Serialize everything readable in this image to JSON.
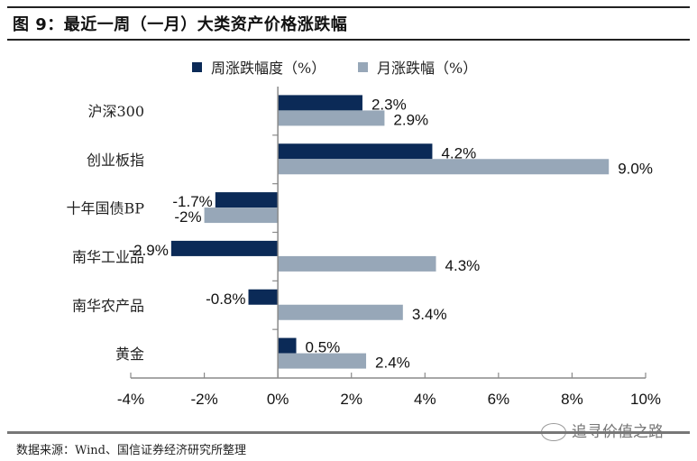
{
  "header": {
    "title": "图 9：最近一周（一月）大类资产价格涨跌幅"
  },
  "footer": {
    "source": "数据来源：Wind、国信证券经济研究所整理",
    "watermark": "追寻价值之路"
  },
  "colors": {
    "weekly": "#0b2a57",
    "monthly": "#97a7b8",
    "axis": "#8a8a8a"
  },
  "chart_data": {
    "type": "bar",
    "orientation": "horizontal",
    "title": "",
    "categories": [
      "沪深300",
      "创业板指",
      "十年国债BP",
      "南华工业品",
      "南华农产品",
      "黄金"
    ],
    "series": [
      {
        "name": "周涨跌幅度（%）",
        "values": [
          2.3,
          4.2,
          -1.7,
          -2.9,
          -0.8,
          0.5
        ],
        "labels": [
          "2.3%",
          "4.2%",
          "-1.7%",
          "-2.9%",
          "-0.8%",
          "0.5%"
        ]
      },
      {
        "name": "月涨跌幅（%）",
        "values": [
          2.9,
          9.0,
          -2.0,
          4.3,
          3.4,
          2.4
        ],
        "labels": [
          "2.9%",
          "9.0%",
          "-2%",
          "4.3%",
          "3.4%",
          "2.4%"
        ]
      }
    ],
    "xlim": [
      -4,
      10
    ],
    "xticks": [
      -4,
      -2,
      0,
      2,
      4,
      6,
      8,
      10
    ],
    "xtick_labels": [
      "-4%",
      "-2%",
      "0%",
      "2%",
      "4%",
      "6%",
      "8%",
      "10%"
    ],
    "xlabel": "",
    "ylabel": "",
    "grid": false,
    "legend": "top"
  }
}
